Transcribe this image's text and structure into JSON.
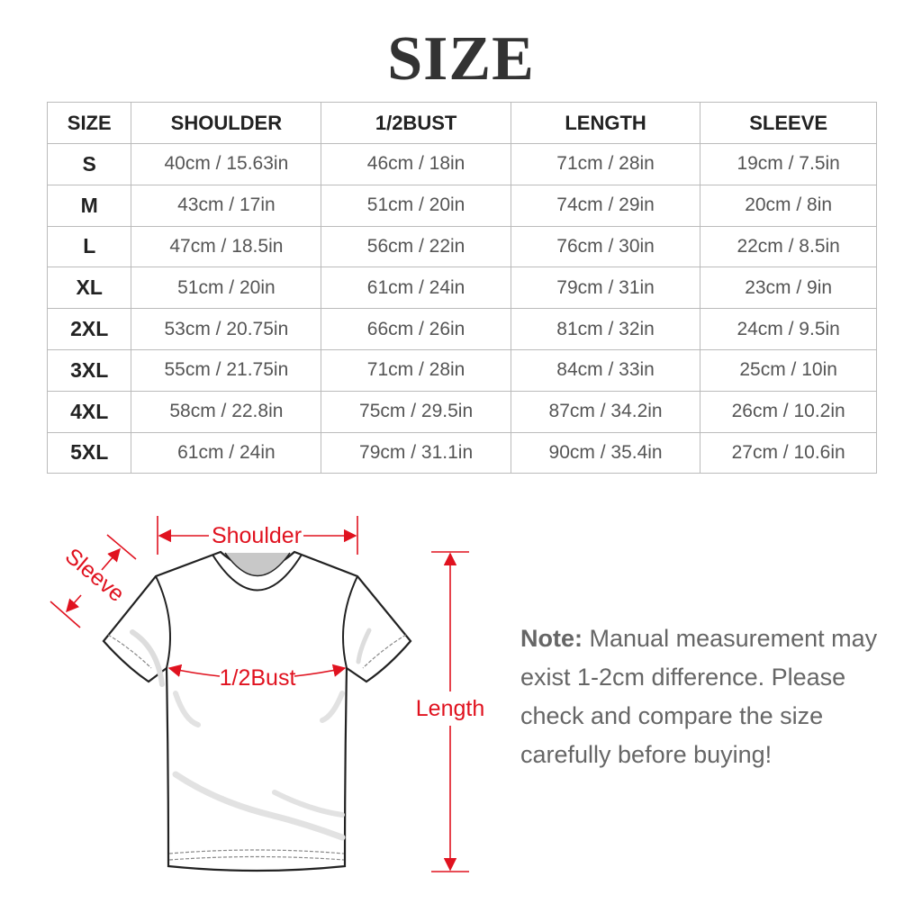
{
  "title": "SIZE",
  "table": {
    "headers": [
      "SIZE",
      "SHOULDER",
      "1/2BUST",
      "LENGTH",
      "SLEEVE"
    ],
    "rows": [
      [
        "S",
        "40cm / 15.63in",
        "46cm / 18in",
        "71cm / 28in",
        "19cm / 7.5in"
      ],
      [
        "M",
        "43cm / 17in",
        "51cm / 20in",
        "74cm / 29in",
        "20cm / 8in"
      ],
      [
        "L",
        "47cm / 18.5in",
        "56cm / 22in",
        "76cm / 30in",
        "22cm / 8.5in"
      ],
      [
        "XL",
        "51cm / 20in",
        "61cm / 24in",
        "79cm / 31in",
        "23cm / 9in"
      ],
      [
        "2XL",
        "53cm / 20.75in",
        "66cm / 26in",
        "81cm / 32in",
        "24cm / 9.5in"
      ],
      [
        "3XL",
        "55cm / 21.75in",
        "71cm / 28in",
        "84cm / 33in",
        "25cm / 10in"
      ],
      [
        "4XL",
        "58cm / 22.8in",
        "75cm / 29.5in",
        "87cm / 34.2in",
        "26cm / 10.2in"
      ],
      [
        "5XL",
        "61cm / 24in",
        "79cm / 31.1in",
        "90cm / 35.4in",
        "27cm / 10.6in"
      ]
    ]
  },
  "diagram": {
    "shoulder_label": "Shoulder",
    "sleeve_label": "Sleeve",
    "bust_label": "1/2Bust",
    "length_label": "Length",
    "accent_color": "#e0121f"
  },
  "note": {
    "label": "Note:",
    "text": "Manual measurement may exist 1-2cm difference. Please check and compare the size carefully before buying!"
  }
}
